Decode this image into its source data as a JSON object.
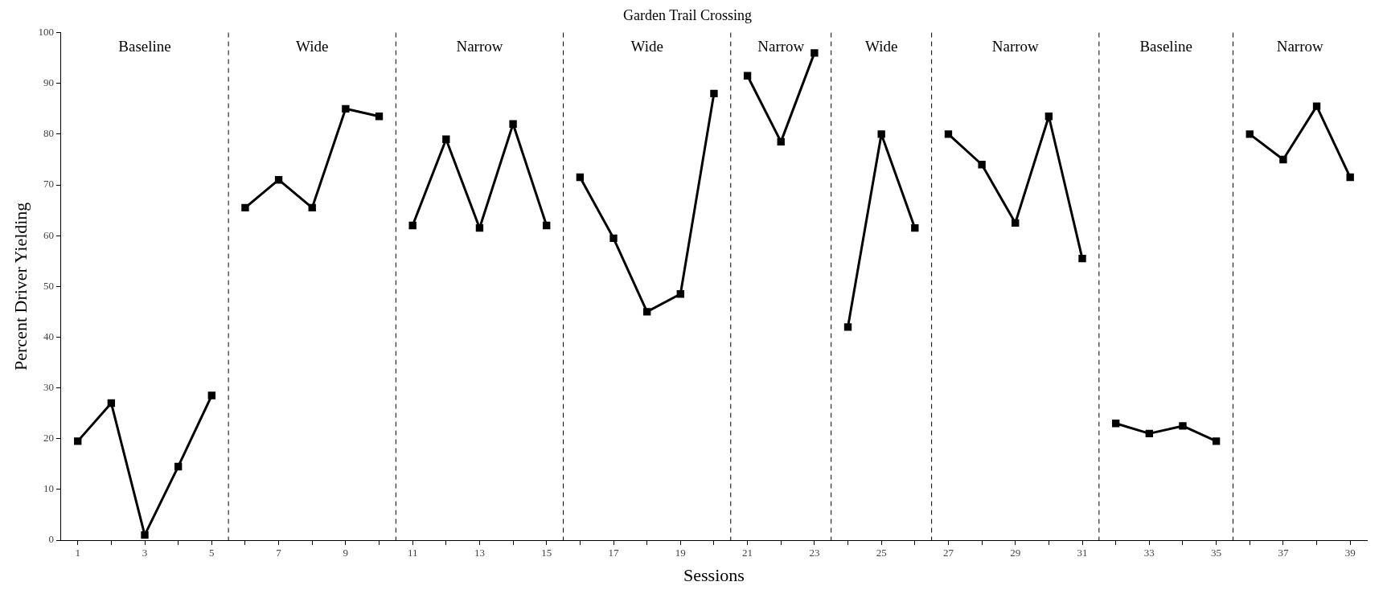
{
  "chart_data": {
    "type": "line",
    "title": "Garden Trail Crossing",
    "xlabel": "Sessions",
    "ylabel": "Percent Driver Yielding",
    "xlim": [
      0.5,
      39.5
    ],
    "ylim": [
      0,
      100
    ],
    "xticks": [
      1,
      {
        "value": 2,
        "label": null
      },
      3,
      {
        "value": 4,
        "label": null
      },
      5,
      {
        "value": 6,
        "label": null
      },
      7,
      {
        "value": 8,
        "label": null
      },
      9,
      {
        "value": 10,
        "label": null
      },
      11,
      {
        "value": 12,
        "label": null
      },
      13,
      {
        "value": 14,
        "label": null
      },
      15,
      {
        "value": 16,
        "label": null
      },
      17,
      {
        "value": 18,
        "label": null
      },
      19,
      {
        "value": 20,
        "label": null
      },
      21,
      {
        "value": 22,
        "label": null
      },
      23,
      {
        "value": 24,
        "label": null
      },
      25,
      {
        "value": 26,
        "label": null
      },
      27,
      {
        "value": 28,
        "label": null
      },
      29,
      {
        "value": 30,
        "label": null
      },
      31,
      {
        "value": 32,
        "label": null
      },
      33,
      {
        "value": 34,
        "label": null
      },
      35,
      {
        "value": 36,
        "label": null
      },
      37,
      {
        "value": 38,
        "label": null
      },
      39
    ],
    "yticks": [
      0,
      10,
      20,
      30,
      40,
      50,
      60,
      70,
      80,
      90,
      100
    ],
    "grid": false,
    "legend": false,
    "marker": "square",
    "line_style": "solid",
    "series": [
      {
        "color": "#000000",
        "x": [
          1,
          2,
          3,
          4,
          5
        ],
        "values": [
          19.5,
          27,
          1,
          14.5,
          28.5
        ]
      },
      {
        "color": "#000000",
        "x": [
          6,
          7,
          8,
          9,
          10
        ],
        "values": [
          65.5,
          71,
          65.5,
          85,
          83.5
        ]
      },
      {
        "color": "#000000",
        "x": [
          11,
          12,
          13,
          14,
          15
        ],
        "values": [
          62,
          79,
          61.5,
          82,
          62
        ]
      },
      {
        "color": "#000000",
        "x": [
          16,
          17,
          18,
          19,
          20
        ],
        "values": [
          71.5,
          59.5,
          45,
          48.5,
          88
        ]
      },
      {
        "color": "#000000",
        "x": [
          21,
          22,
          23
        ],
        "values": [
          91.5,
          78.5,
          96
        ]
      },
      {
        "color": "#000000",
        "x": [
          24,
          25,
          26
        ],
        "values": [
          42,
          80,
          61.5
        ]
      },
      {
        "color": "#000000",
        "x": [
          27,
          28,
          29,
          30,
          31
        ],
        "values": [
          80,
          74,
          62.5,
          83.5,
          55.5
        ]
      },
      {
        "color": "#000000",
        "x": [
          32,
          33,
          34,
          35
        ],
        "values": [
          23,
          21,
          22.5,
          19.5
        ]
      },
      {
        "color": "#000000",
        "x": [
          36,
          37,
          38,
          39
        ],
        "values": [
          80,
          75,
          85.5,
          71.5
        ]
      }
    ],
    "ref_lines": [
      {
        "axis": "x",
        "value": 5.5,
        "color": "#000000",
        "line_style": "dashed"
      },
      {
        "axis": "x",
        "value": 10.5,
        "color": "#000000",
        "line_style": "dashed"
      },
      {
        "axis": "x",
        "value": 15.5,
        "color": "#000000",
        "line_style": "dashed"
      },
      {
        "axis": "x",
        "value": 20.5,
        "color": "#000000",
        "line_style": "dashed"
      },
      {
        "axis": "x",
        "value": 23.5,
        "color": "#000000",
        "line_style": "dashed"
      },
      {
        "axis": "x",
        "value": 26.5,
        "color": "#000000",
        "line_style": "dashed"
      },
      {
        "axis": "x",
        "value": 31.5,
        "color": "#000000",
        "line_style": "dashed"
      },
      {
        "axis": "x",
        "value": 35.5,
        "color": "#000000",
        "line_style": "dashed"
      }
    ],
    "annotations": [
      "Baseline",
      "Wide",
      "Narrow",
      "Wide",
      "Narrow",
      "Wide",
      "Narrow",
      "Baseline",
      "Narrow"
    ]
  }
}
